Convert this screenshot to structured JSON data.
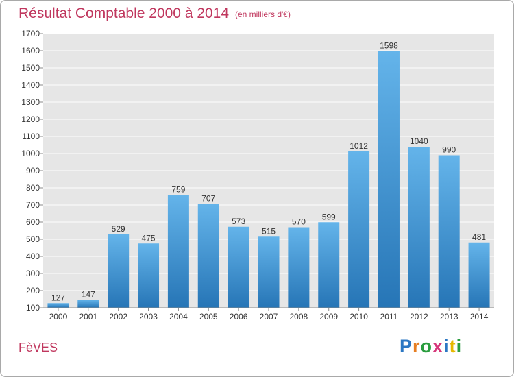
{
  "title": "Résultat Comptable 2000 à 2014",
  "subtitle": "(en milliers d'€)",
  "commune": "FèVES",
  "logo": {
    "letters": [
      "P",
      "r",
      "o",
      "x",
      "i",
      "t",
      "i"
    ],
    "colors": [
      "#2b77c3",
      "#e67e22",
      "#2a9d3f",
      "#d6367a",
      "#2b77c3",
      "#e6b800",
      "#2a9d3f"
    ]
  },
  "colors": {
    "bar": "#3d97d8",
    "bar_light": "#64b4ea",
    "bar_dark": "#2675b6",
    "title": "#c0375e",
    "plot_bg": "#e6e6e6",
    "grid": "#ffffff",
    "axis_text": "#333333"
  },
  "chart_data": {
    "type": "bar",
    "categories": [
      "2000",
      "2001",
      "2002",
      "2003",
      "2004",
      "2005",
      "2006",
      "2007",
      "2008",
      "2009",
      "2010",
      "2011",
      "2012",
      "2013",
      "2014"
    ],
    "values": [
      127,
      147,
      529,
      475,
      759,
      707,
      573,
      515,
      570,
      599,
      1012,
      1598,
      1040,
      990,
      481
    ],
    "value_labels": [
      "127",
      "147",
      "529",
      "475",
      "759",
      "707",
      "573",
      "515",
      "570",
      "599",
      "1012",
      "1598",
      "1040",
      "990",
      "481"
    ],
    "y_ticks": [
      "100",
      "200",
      "300",
      "400",
      "500",
      "600",
      "700",
      "800",
      "900",
      "1000",
      "1100",
      "1200",
      "1300",
      "1400",
      "1500",
      "1600",
      "1700"
    ],
    "ylim": [
      100,
      1700
    ],
    "grid": true,
    "legend": "none"
  }
}
